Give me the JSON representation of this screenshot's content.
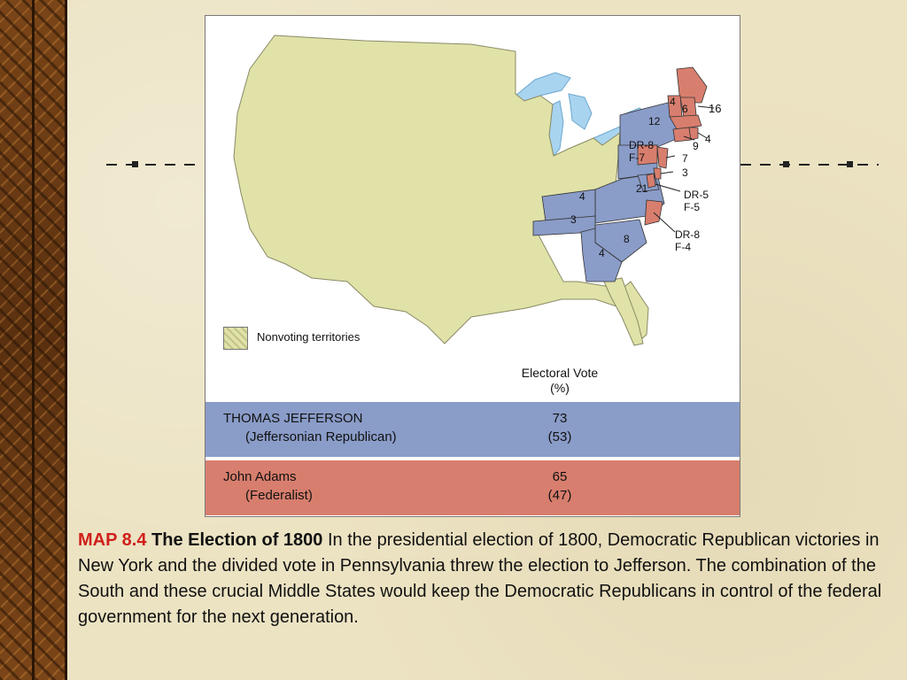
{
  "map": {
    "electoral_labels": {
      "nh": "6",
      "vt": "4",
      "ma": "16",
      "ny": "12",
      "ri": "4",
      "ct": "9",
      "pa_dr": "DR-8",
      "pa_f": "F-7",
      "nj": "7",
      "de": "3",
      "va": "21",
      "md_dr": "DR-5",
      "md_f": "F-5",
      "ky": "4",
      "tn": "3",
      "nc_dr": "DR-8",
      "nc_f": "F-4",
      "sc": "8",
      "ga": "4"
    },
    "legend_label": "Nonvoting territories",
    "vote_header": "Electoral Vote",
    "vote_header_sub": "(%)",
    "colors": {
      "republican": "#8a9cc8",
      "federalist": "#d87e6e",
      "nonvoting": "#e0e2a8",
      "water": "#a9d4ef"
    }
  },
  "candidates": [
    {
      "name": "THOMAS JEFFERSON",
      "party": "(Jeffersonian Republican)",
      "votes": "73",
      "percent": "(53)"
    },
    {
      "name": "John Adams",
      "party": "(Federalist)",
      "votes": "65",
      "percent": "(47)"
    }
  ],
  "caption": {
    "map_number": "MAP 8.4",
    "title": "The Election of 1800",
    "text": "In the presidential election of 1800, Democratic Republican victories in New York and the divided vote in Pennsylvania threw the election to Jefferson. The combination of the South and these crucial Middle States would keep the Democratic Republicans in control of the federal government for the next generation."
  }
}
